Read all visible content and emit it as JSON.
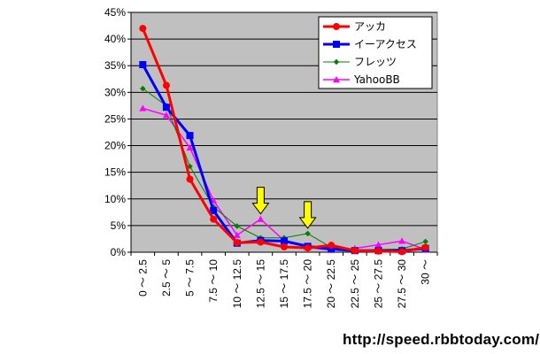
{
  "chart_data": {
    "type": "line",
    "title": "",
    "xlabel": "",
    "ylabel": "",
    "ylim": [
      0,
      45
    ],
    "y_ticks": [
      "0%",
      "5%",
      "10%",
      "15%",
      "20%",
      "25%",
      "30%",
      "35%",
      "40%",
      "45%"
    ],
    "categories": [
      "0 ～ 2.5",
      "2.5 ～ 5",
      "5 ～ 7.5",
      "7.5 ～ 10",
      "10 ～ 12.5",
      "12.5 ～ 15",
      "15 ～ 17.5",
      "17.5 ～ 20",
      "20 ～ 22.5",
      "22.5 ～ 25",
      "25 ～ 27.5",
      "27.5 ～ 30",
      "30 ～"
    ],
    "grid": true,
    "plot_background": "#c0c0c0",
    "legend_position": "top-right",
    "series": [
      {
        "name": "アッカ",
        "color": "#ff0000",
        "marker": "circle",
        "stroke_width": 3,
        "values": [
          42,
          31.3,
          13.7,
          6.2,
          1.8,
          1.9,
          1.0,
          0.8,
          1.3,
          0.3,
          0.2,
          0.1,
          0.9
        ]
      },
      {
        "name": "イーアクセス",
        "color": "#0000ff",
        "marker": "square",
        "stroke_width": 3,
        "values": [
          35.2,
          27.2,
          21.9,
          7.8,
          1.7,
          2.2,
          2.1,
          1.1,
          0.6,
          0.3,
          0.3,
          0.3,
          0.7
        ]
      },
      {
        "name": "フレッツ",
        "color": "#008000",
        "marker": "diamond",
        "stroke_width": 1,
        "values": [
          30.7,
          27.5,
          16.1,
          8.5,
          4.9,
          2.7,
          2.7,
          3.5,
          0.9,
          0.4,
          0.5,
          0.6,
          2.0
        ]
      },
      {
        "name": "YahooBB",
        "color": "#ff00ff",
        "marker": "triangle",
        "stroke_width": 1.5,
        "values": [
          27.0,
          25.7,
          19.6,
          9.7,
          3.2,
          6.2,
          2.2,
          0.9,
          0.4,
          0.7,
          1.4,
          2.1,
          0.5
        ]
      }
    ],
    "annotations": [
      {
        "type": "arrow",
        "color": "#ffff00",
        "category_index": 5,
        "value": 6.2
      },
      {
        "type": "arrow",
        "color": "#ffff00",
        "category_index": 7,
        "value": 3.5
      }
    ]
  },
  "footer": {
    "url": "http://speed.rbbtoday.com/"
  }
}
